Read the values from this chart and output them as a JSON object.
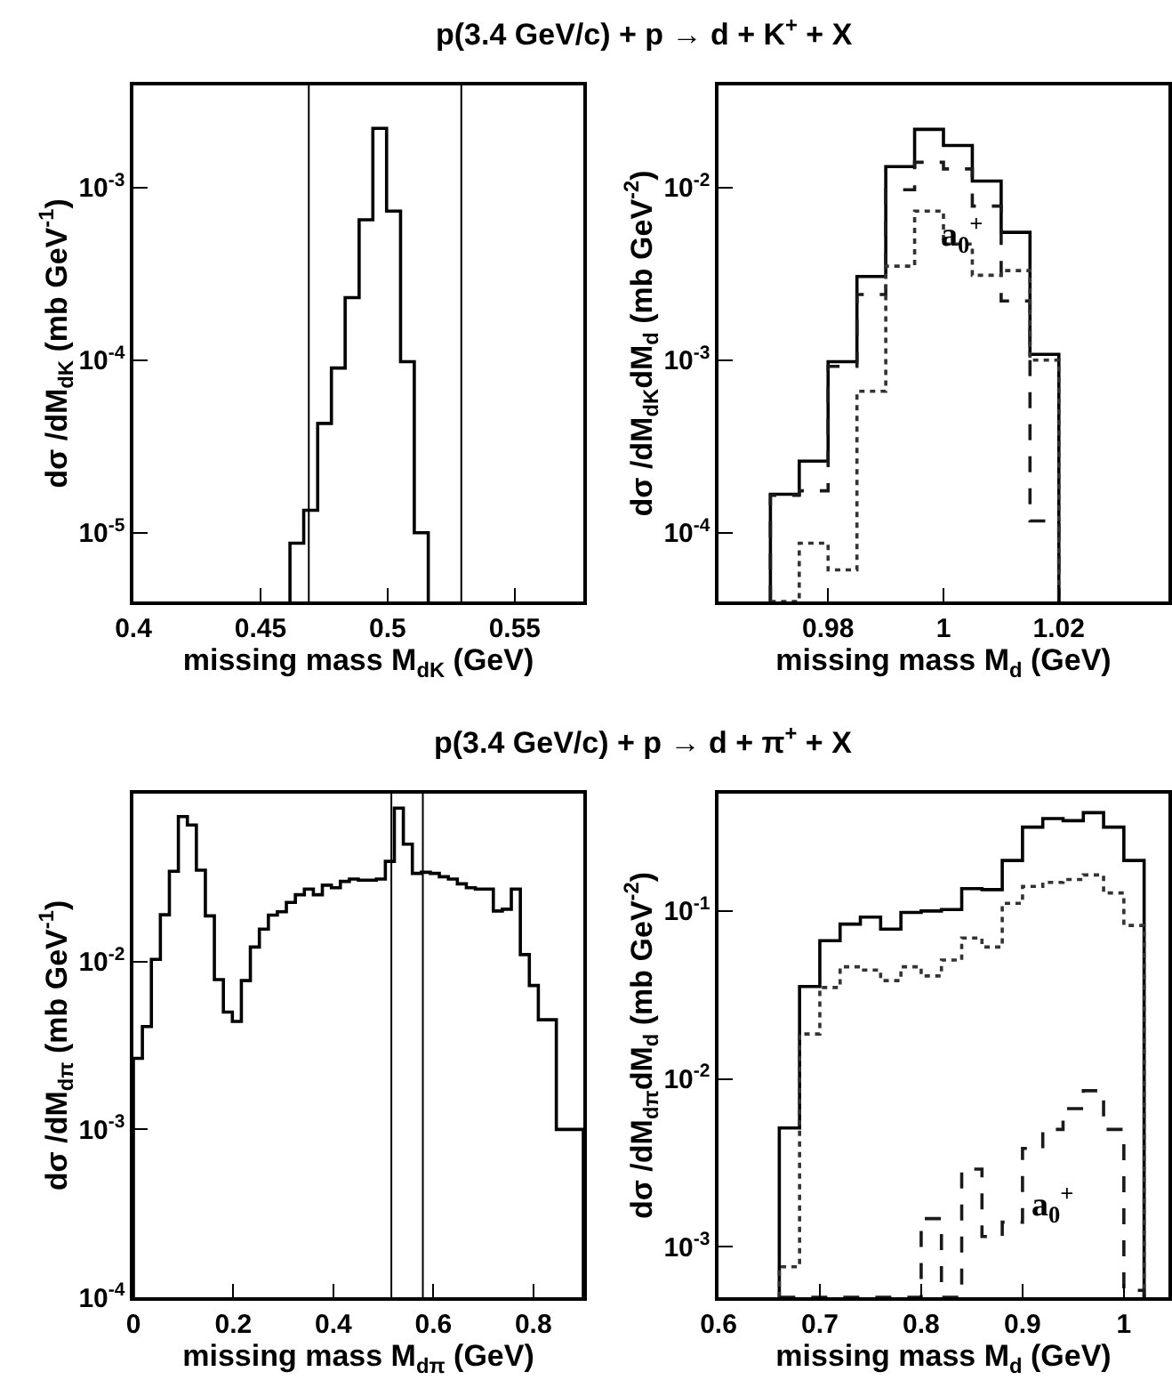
{
  "chart_data": [
    {
      "type": "histogram",
      "title": "p(3.4 GeV/c) + p → d + K$^{+}$ + X",
      "xlabel": "missing mass M$_{dK}$ (GeV)",
      "ylabel": "dσ /dM$_{dK}$ (mb GeV$^{-1}$)",
      "log": "y",
      "bins": [
        0.4616,
        0.467,
        0.4725,
        0.4779,
        0.4833,
        0.4888,
        0.4942,
        0.4996,
        0.5051,
        0.5105,
        0.516
      ],
      "values": [
        8.7e-06,
        1.35e-05,
        4.3e-05,
        9e-05,
        0.00023,
        0.00065,
        0.0022,
        0.00073,
        9.8e-05,
        1e-05
      ],
      "color": "#000000",
      "xlim": [
        0.4,
        0.577
      ],
      "xticks": [
        0.4,
        0.45,
        0.5,
        0.55
      ],
      "ylim": [
        4e-06,
        0.0039
      ],
      "yticks": [
        {
          "value": 1e-05,
          "label": "10$^{-5}$"
        },
        {
          "value": 0.0001,
          "label": "10$^{-4}$"
        },
        {
          "value": 0.001,
          "label": "10$^{-3}$"
        }
      ],
      "ref_lines": [
        {
          "axis": "x",
          "value": 0.469,
          "color": "#000000"
        },
        {
          "axis": "x",
          "value": 0.529,
          "color": "#000000"
        }
      ]
    },
    {
      "type": "histogram",
      "xlabel": "missing mass M$_{d}$ (GeV)",
      "ylabel": "dσ /dM$_{dK}$dM$_{d}$ (mb GeV$^{-2}$)",
      "log": "y",
      "bins": [
        0.97,
        0.975,
        0.98,
        0.985,
        0.99,
        0.995,
        1.0,
        1.005,
        1.01,
        1.015,
        1.02
      ],
      "series": [
        {
          "color": "#000000",
          "line_style": "solid",
          "values": [
            0.000167,
            0.00026,
            0.00098,
            0.00305,
            0.0132,
            0.0217,
            0.0175,
            0.0109,
            0.0055,
            0.00108
          ]
        },
        {
          "color": "#1a1a1a",
          "line_style": "dashed",
          "values": [
            0.000165,
            0.000175,
            0.00092,
            0.0024,
            0.0097,
            0.014,
            0.0128,
            0.0078,
            0.0022,
            0.000117
          ]
        },
        {
          "color": "#333333",
          "line_style": "dotted",
          "values": [
            null,
            8.7e-05,
            6.1e-05,
            0.00066,
            0.0035,
            0.0073,
            0.0047,
            0.0031,
            0.0033,
            0.001
          ]
        }
      ],
      "xlim": [
        0.961,
        1.039
      ],
      "xticks": [
        0.98,
        1,
        1.02
      ],
      "ylim": [
        4e-05,
        0.039
      ],
      "yticks": [
        {
          "value": 0.0001,
          "label": "10$^{-4}$"
        },
        {
          "value": 0.001,
          "label": "10$^{-3}$"
        },
        {
          "value": 0.01,
          "label": "10$^{-2}$"
        }
      ],
      "annotations": [
        "a$_{0}$$^{+}$"
      ]
    },
    {
      "type": "histogram",
      "title": "p(3.4 GeV/c) + p → d + π$^{+}$ + X",
      "xlabel": "missing mass M$_{dπ}$ (GeV)",
      "ylabel": "dσ /dM$_{dπ}$ (mb GeV$^{-1}$)",
      "log": "y",
      "bins": [
        0,
        0.018,
        0.036,
        0.054,
        0.072,
        0.09,
        0.108,
        0.126,
        0.144,
        0.162,
        0.18,
        0.198,
        0.216,
        0.234,
        0.252,
        0.27,
        0.288,
        0.306,
        0.324,
        0.342,
        0.36,
        0.378,
        0.396,
        0.414,
        0.432,
        0.45,
        0.468,
        0.486,
        0.504,
        0.522,
        0.54,
        0.558,
        0.576,
        0.594,
        0.612,
        0.63,
        0.648,
        0.666,
        0.684,
        0.702,
        0.72,
        0.738,
        0.756,
        0.774,
        0.792,
        0.81,
        0.828,
        0.846,
        0.864,
        0.882,
        0.9
      ],
      "values": [
        0.00265,
        0.0041,
        0.0103,
        0.019,
        0.0345,
        0.073,
        0.065,
        0.035,
        0.0187,
        0.0078,
        0.005,
        0.0044,
        0.0077,
        0.0122,
        0.0156,
        0.0189,
        0.0198,
        0.0225,
        0.025,
        0.027,
        0.025,
        0.0285,
        0.0275,
        0.03,
        0.031,
        0.0305,
        0.0305,
        0.031,
        0.0395,
        0.082,
        0.05,
        0.0335,
        0.034,
        0.0335,
        0.032,
        0.031,
        0.029,
        0.0275,
        0.027,
        0.027,
        0.02,
        0.0205,
        0.027,
        0.011,
        0.0072,
        0.0045,
        0.0045,
        0.001,
        0.001,
        0.001
      ],
      "color": "#000000",
      "xlim": [
        0,
        0.9
      ],
      "xticks": [
        0,
        0.2,
        0.4,
        0.6,
        0.8
      ],
      "ylim": [
        0.0001,
        0.1
      ],
      "yticks": [
        {
          "value": 0.0001,
          "label": "10$^{-4}$"
        },
        {
          "value": 0.001,
          "label": "10$^{-3}$"
        },
        {
          "value": 0.01,
          "label": "10$^{-2}$"
        }
      ],
      "ref_lines": [
        {
          "axis": "x",
          "value": 0.516,
          "color": "#000000"
        },
        {
          "axis": "x",
          "value": 0.579,
          "color": "#000000"
        }
      ]
    },
    {
      "type": "histogram",
      "xlabel": "missing mass M$_{d}$ (GeV)",
      "ylabel": "dσ /dM$_{dπ}$dM$_{d}$ (mb GeV$^{-2}$)",
      "log": "y",
      "bins": [
        0.66,
        0.68,
        0.7,
        0.72,
        0.74,
        0.76,
        0.78,
        0.8,
        0.82,
        0.84,
        0.86,
        0.88,
        0.9,
        0.92,
        0.94,
        0.96,
        0.98,
        1.0,
        1.02
      ],
      "series": [
        {
          "color": "#000000",
          "line_style": "solid",
          "values": [
            0.0051,
            0.0355,
            0.0665,
            0.0835,
            0.092,
            0.078,
            0.098,
            0.1,
            0.102,
            0.136,
            0.134,
            0.2,
            0.316,
            0.355,
            0.345,
            0.385,
            0.316,
            0.2
          ]
        },
        {
          "color": "#333333",
          "line_style": "dotted",
          "values": [
            0.00076,
            0.0185,
            0.035,
            0.0465,
            0.0445,
            0.0385,
            0.0465,
            0.041,
            0.051,
            0.069,
            0.061,
            0.111,
            0.14,
            0.148,
            0.154,
            0.164,
            0.128,
            0.082
          ]
        },
        {
          "color": "#1a1a1a",
          "line_style": "dashed",
          "values": [
            null,
            null,
            null,
            null,
            null,
            null,
            null,
            0.00147,
            null,
            0.0029,
            0.00115,
            0.0014,
            0.00385,
            0.005,
            0.00665,
            0.0085,
            0.005,
            0.00055
          ]
        }
      ],
      "xlim": [
        0.6,
        1.044
      ],
      "xticks": [
        0.6,
        0.7,
        0.8,
        0.9,
        1
      ],
      "ylim": [
        0.0005,
        0.5
      ],
      "yticks": [
        {
          "value": 0.001,
          "label": "10$^{-3}$"
        },
        {
          "value": 0.01,
          "label": "10$^{-2}$"
        },
        {
          "value": 0.1,
          "label": "10$^{-1}$"
        }
      ],
      "annotations": [
        "a$_{0}$$^{+}$"
      ]
    }
  ]
}
